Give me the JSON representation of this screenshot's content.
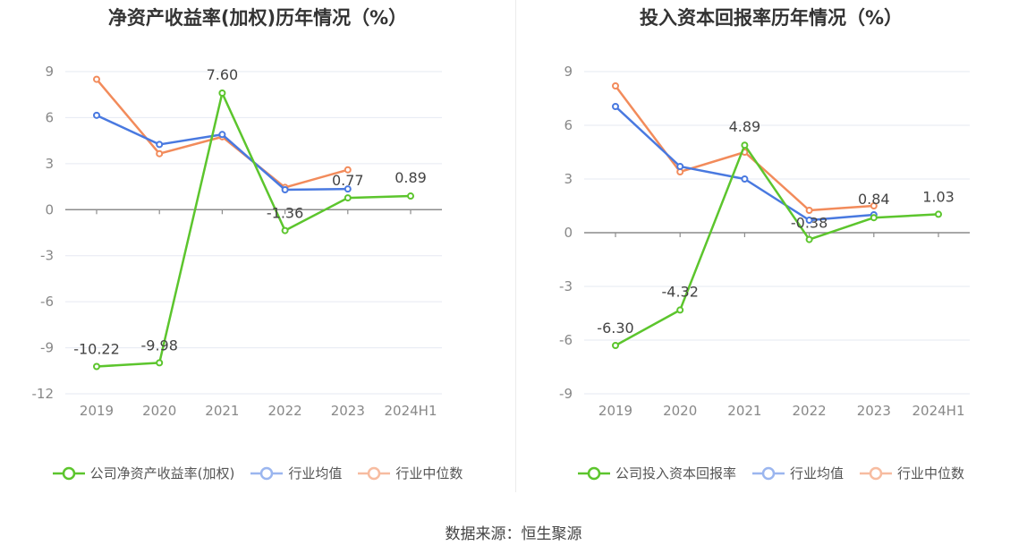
{
  "source": "数据来源：恒生聚源",
  "charts": [
    {
      "title": "净资产收益率(加权)历年情况（%）",
      "legend": [
        "公司净资产收益率(加权)",
        "行业均值",
        "行业中位数"
      ]
    },
    {
      "title": "投入资本回报率历年情况（%）",
      "legend": [
        "公司投入资本回报率",
        "行业均值",
        "行业中位数"
      ]
    }
  ],
  "chart_data": [
    {
      "type": "line",
      "title": "净资产收益率(加权)历年情况（%）",
      "categories": [
        "2019",
        "2020",
        "2021",
        "2022",
        "2023",
        "2024H1"
      ],
      "yticks": [
        9,
        6,
        3,
        0,
        -3,
        -6,
        -9,
        -12
      ],
      "ylim": [
        -12,
        9
      ],
      "grid": true,
      "legend_position": "bottom",
      "series": [
        {
          "name": "公司净资产收益率(加权)",
          "color": "#5cc52d",
          "values": [
            -10.22,
            -9.98,
            7.6,
            -1.36,
            0.77,
            0.89
          ],
          "labels": [
            "-10.22",
            "-9.98",
            "7.60",
            "-1.36",
            "0.77",
            "0.89"
          ]
        },
        {
          "name": "行业均值",
          "color": "#4979e0",
          "values": [
            6.15,
            4.25,
            4.9,
            1.3,
            1.35,
            null
          ]
        },
        {
          "name": "行业中位数",
          "color": "#f28b5b",
          "values": [
            8.5,
            3.65,
            4.75,
            1.45,
            2.6,
            null
          ]
        }
      ]
    },
    {
      "type": "line",
      "title": "投入资本回报率历年情况（%）",
      "categories": [
        "2019",
        "2020",
        "2021",
        "2022",
        "2023",
        "2024H1"
      ],
      "yticks": [
        9,
        6,
        3,
        0,
        -3,
        -6,
        -9
      ],
      "ylim": [
        -9,
        9
      ],
      "grid": true,
      "legend_position": "bottom",
      "series": [
        {
          "name": "公司投入资本回报率",
          "color": "#5cc52d",
          "values": [
            -6.3,
            -4.32,
            4.89,
            -0.38,
            0.84,
            1.03
          ],
          "labels": [
            "-6.30",
            "-4.32",
            "4.89",
            "-0.38",
            "0.84",
            "1.03"
          ]
        },
        {
          "name": "行业均值",
          "color": "#4979e0",
          "values": [
            7.05,
            3.7,
            3.0,
            0.7,
            1.0,
            null
          ]
        },
        {
          "name": "行业中位数",
          "color": "#f28b5b",
          "values": [
            8.2,
            3.4,
            4.5,
            1.25,
            1.5,
            null
          ]
        }
      ]
    }
  ]
}
